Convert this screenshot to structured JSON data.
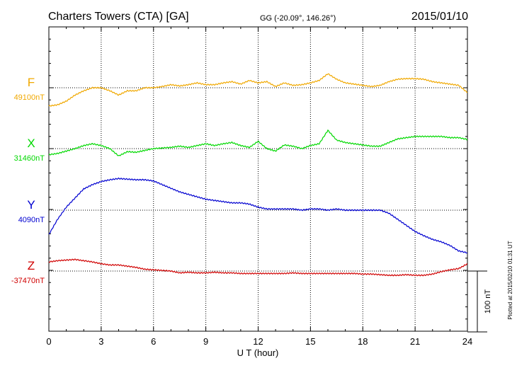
{
  "header": {
    "title": "Charters Towers (CTA)  [GA]",
    "coords": "GG (-20.09°, 146.26°)",
    "date": "2015/01/10"
  },
  "footer": {
    "plotted_note": "Plotted at 2015/02/10 01:31  UT"
  },
  "chart_data": {
    "type": "line",
    "xlabel": "U T (hour)",
    "xlim": [
      0,
      24
    ],
    "x_ticks": [
      0,
      3,
      6,
      9,
      12,
      15,
      18,
      21,
      24
    ],
    "scale_bar": {
      "label": "100 nT",
      "value_nT": 100
    },
    "series": [
      {
        "name": "F",
        "baseline_label": "49100nT",
        "baseline_nT": 49100,
        "color": "#f0a800",
        "x": [
          0,
          0.5,
          1,
          1.5,
          2,
          2.5,
          3,
          3.5,
          4,
          4.5,
          5,
          5.5,
          6,
          6.5,
          7,
          7.5,
          8,
          8.5,
          9,
          9.5,
          10,
          10.5,
          11,
          11.5,
          12,
          12.5,
          13,
          13.5,
          14,
          14.5,
          15,
          15.5,
          16,
          16.5,
          17,
          17.5,
          18,
          18.5,
          19,
          19.5,
          20,
          20.5,
          21,
          21.5,
          22,
          22.5,
          23,
          23.5,
          24
        ],
        "y": [
          -30,
          -28,
          -22,
          -12,
          -5,
          0,
          0,
          -5,
          -12,
          -5,
          -5,
          0,
          0,
          2,
          5,
          3,
          5,
          8,
          5,
          5,
          8,
          10,
          6,
          12,
          8,
          10,
          2,
          8,
          4,
          5,
          8,
          12,
          23,
          14,
          8,
          6,
          4,
          2,
          4,
          10,
          14,
          15,
          15,
          14,
          10,
          8,
          6,
          4,
          -8
        ]
      },
      {
        "name": "X",
        "baseline_label": "31460nT",
        "baseline_nT": 31460,
        "color": "#00d800",
        "x": [
          0,
          0.5,
          1,
          1.5,
          2,
          2.5,
          3,
          3.5,
          4,
          4.5,
          5,
          5.5,
          6,
          6.5,
          7,
          7.5,
          8,
          8.5,
          9,
          9.5,
          10,
          10.5,
          11,
          11.5,
          12,
          12.5,
          13,
          13.5,
          14,
          14.5,
          15,
          15.5,
          16,
          16.5,
          17,
          17.5,
          18,
          18.5,
          19,
          19.5,
          20,
          20.5,
          21,
          21.5,
          22,
          22.5,
          23,
          23.5,
          24
        ],
        "y": [
          -10,
          -8,
          -4,
          0,
          5,
          8,
          5,
          0,
          -12,
          -5,
          -6,
          -3,
          0,
          1,
          2,
          4,
          2,
          5,
          8,
          5,
          8,
          10,
          5,
          2,
          12,
          0,
          -4,
          6,
          4,
          0,
          5,
          8,
          30,
          14,
          10,
          8,
          6,
          4,
          4,
          10,
          16,
          18,
          20,
          20,
          20,
          20,
          18,
          18,
          15
        ]
      },
      {
        "name": "Y",
        "baseline_label": "4090nT",
        "baseline_nT": 4090,
        "color": "#0000d0",
        "x": [
          0,
          0.5,
          1,
          1.5,
          2,
          2.5,
          3,
          3.5,
          4,
          4.5,
          5,
          5.5,
          6,
          6.5,
          7,
          7.5,
          8,
          8.5,
          9,
          9.5,
          10,
          10.5,
          11,
          11.5,
          12,
          12.5,
          13,
          13.5,
          14,
          14.5,
          15,
          15.5,
          16,
          16.5,
          17,
          17.5,
          18,
          18.5,
          19,
          19.5,
          20,
          20.5,
          21,
          21.5,
          22,
          22.5,
          23,
          23.5,
          24
        ],
        "y": [
          -40,
          -15,
          5,
          20,
          35,
          42,
          47,
          50,
          52,
          51,
          50,
          50,
          48,
          42,
          36,
          30,
          26,
          22,
          18,
          16,
          14,
          12,
          12,
          10,
          5,
          2,
          2,
          2,
          2,
          0,
          2,
          2,
          0,
          2,
          0,
          0,
          0,
          0,
          0,
          -5,
          -15,
          -25,
          -35,
          -42,
          -48,
          -52,
          -58,
          -67,
          -70
        ]
      },
      {
        "name": "Z",
        "baseline_label": "-37470nT",
        "baseline_nT": -37470,
        "color": "#d00000",
        "x": [
          0,
          0.5,
          1,
          1.5,
          2,
          2.5,
          3,
          3.5,
          4,
          4.5,
          5,
          5.5,
          6,
          6.5,
          7,
          7.5,
          8,
          8.5,
          9,
          9.5,
          10,
          10.5,
          11,
          11.5,
          12,
          12.5,
          13,
          13.5,
          14,
          14.5,
          15,
          15.5,
          16,
          16.5,
          17,
          17.5,
          18,
          18.5,
          19,
          19.5,
          20,
          20.5,
          21,
          21.5,
          22,
          22.5,
          23,
          23.5,
          24
        ],
        "y": [
          15,
          17,
          18,
          19,
          17,
          15,
          12,
          10,
          10,
          8,
          6,
          3,
          2,
          1,
          0,
          -3,
          -2,
          -3,
          -3,
          -2,
          -3,
          -3,
          -4,
          -4,
          -4,
          -4,
          -4,
          -4,
          -3,
          -4,
          -4,
          -4,
          -4,
          -4,
          -4,
          -4,
          -5,
          -5,
          -6,
          -7,
          -7,
          -6,
          -7,
          -7,
          -5,
          -1,
          2,
          4,
          12
        ]
      }
    ],
    "grid": true
  }
}
